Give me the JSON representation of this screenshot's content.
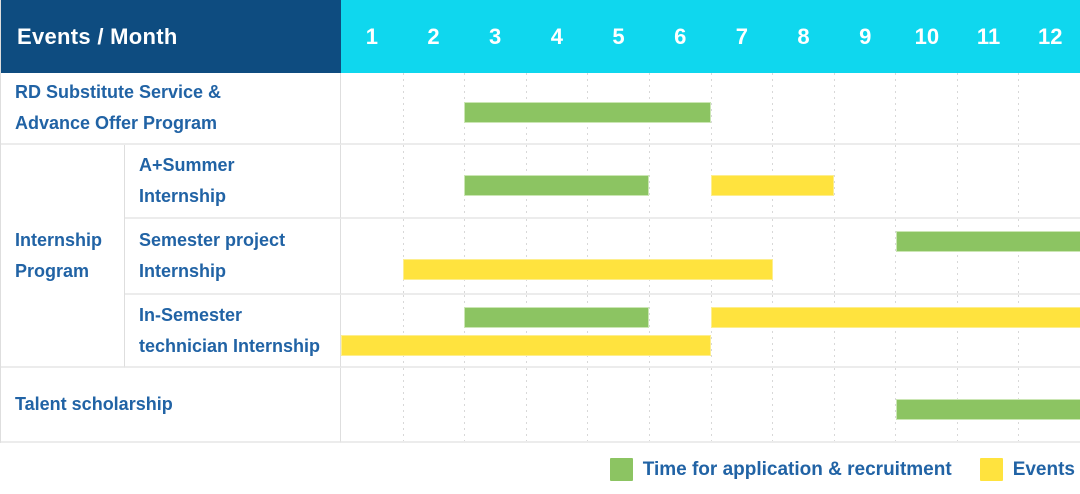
{
  "header": {
    "title": "Events / Month"
  },
  "colors": {
    "header_navy": "#0e4c80",
    "header_cyan": "#0fd7ee",
    "label_blue": "#2163a5",
    "application": "#8cc462",
    "application_border": "#cbe6b4",
    "event": "#ffe33e",
    "event_border": "#fff0931",
    "grid_line": "#d8d8d8"
  },
  "chart_data": {
    "type": "gantt",
    "title": "Events / Month",
    "months": [
      "1",
      "2",
      "3",
      "4",
      "5",
      "6",
      "7",
      "8",
      "9",
      "10",
      "11",
      "12"
    ],
    "x_range": [
      1,
      12
    ],
    "grid": "dashed vertical month lines",
    "legend_position": "bottom-right",
    "group": {
      "lines": [
        "Internship",
        "Program"
      ],
      "label": "Internship Program",
      "covers_rows": [
        1,
        2,
        3
      ]
    },
    "rows": [
      {
        "lines": [
          "RD Substitute Service &",
          "Advance Offer Program"
        ],
        "bars": [
          {
            "kind": "application",
            "start_month": 3,
            "end_month": 6,
            "track": "center"
          }
        ]
      },
      {
        "lines": [
          "A+Summer",
          "Internship"
        ],
        "bars": [
          {
            "kind": "application",
            "start_month": 3,
            "end_month": 5,
            "track": "center"
          },
          {
            "kind": "event",
            "start_month": 7,
            "end_month": 8,
            "track": "center"
          }
        ]
      },
      {
        "lines": [
          "Semester project",
          "Internship"
        ],
        "bars": [
          {
            "kind": "application",
            "start_month": 10,
            "end_month": 12,
            "track": "top"
          },
          {
            "kind": "event",
            "start_month": 2,
            "end_month": 7,
            "track": "bottom"
          }
        ]
      },
      {
        "lines": [
          "In-Semester",
          "technician Internship"
        ],
        "bars": [
          {
            "kind": "application",
            "start_month": 3,
            "end_month": 5,
            "track": "top"
          },
          {
            "kind": "event",
            "start_month": 7,
            "end_month": 12,
            "track": "top"
          },
          {
            "kind": "event",
            "start_month": 1,
            "end_month": 6,
            "track": "bottom"
          }
        ]
      },
      {
        "lines": [
          "Talent scholarship"
        ],
        "bars": [
          {
            "kind": "application",
            "start_month": 10,
            "end_month": 12,
            "track": "center"
          }
        ]
      }
    ],
    "legend": [
      {
        "kind": "application",
        "label": "Time for application & recruitment"
      },
      {
        "kind": "event",
        "label": "Events"
      }
    ]
  }
}
